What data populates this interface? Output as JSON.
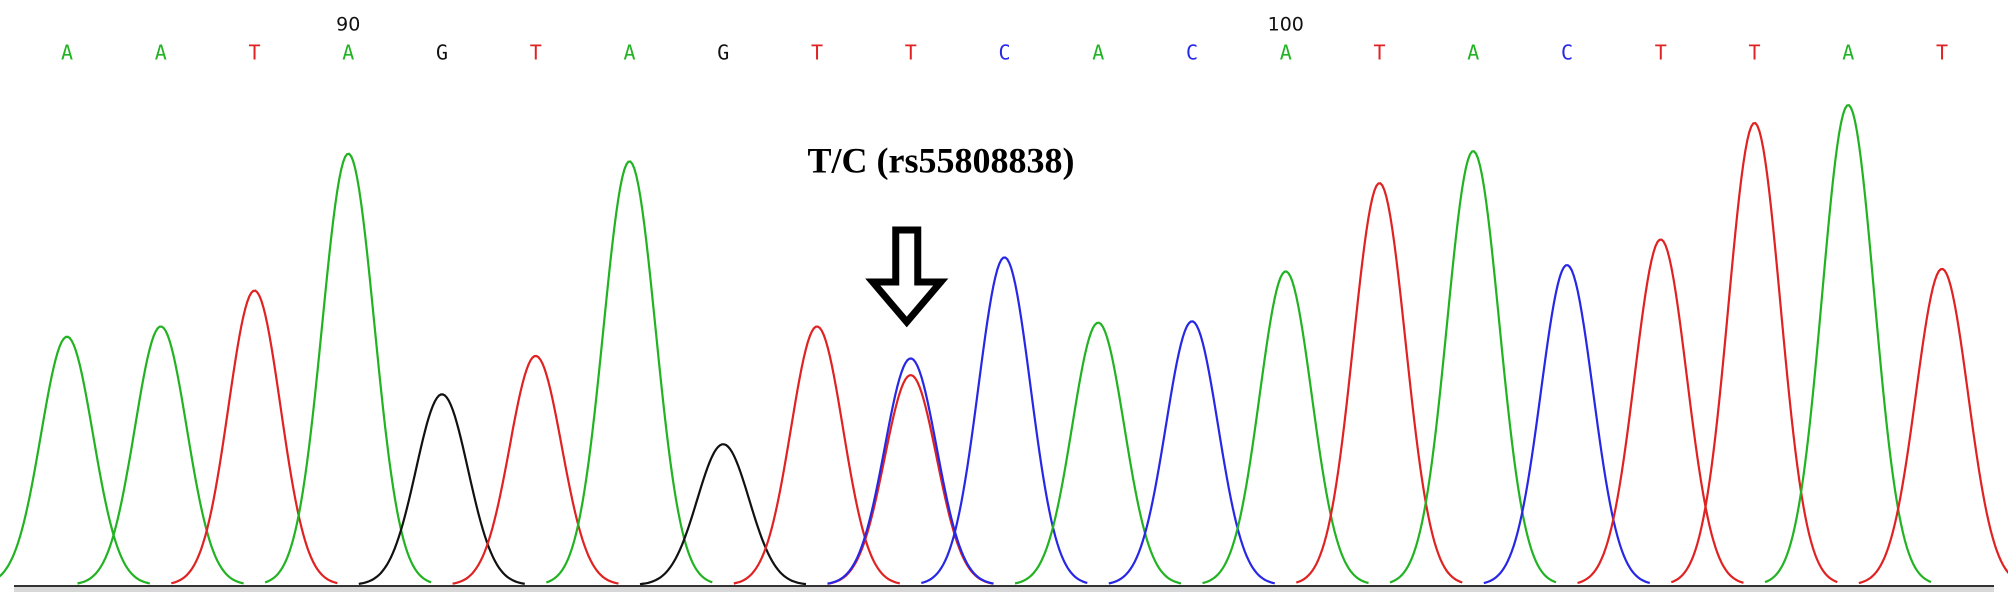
{
  "annotation": "T/C (rs55808838)",
  "base_colors": {
    "A": "#22b322",
    "C": "#2727e6",
    "G": "#111111",
    "T": "#e02222"
  },
  "bases": [
    {
      "base": "A",
      "peak_height": 194
    },
    {
      "base": "A",
      "peak_height": 202
    },
    {
      "base": "T",
      "peak_height": 230
    },
    {
      "base": "A",
      "position": "90",
      "peak_height": 337
    },
    {
      "base": "G",
      "peak_height": 149
    },
    {
      "base": "T",
      "peak_height": 179
    },
    {
      "base": "A",
      "peak_height": 331
    },
    {
      "base": "G",
      "peak_height": 110
    },
    {
      "base": "T",
      "peak_height": 202
    },
    {
      "base": "T",
      "peak_height": 164,
      "secondary_peak": {
        "base": "C",
        "peak_height": 177
      }
    },
    {
      "base": "C",
      "peak_height": 256
    },
    {
      "base": "A",
      "peak_height": 205
    },
    {
      "base": "C",
      "peak_height": 206
    },
    {
      "base": "A",
      "position": "100",
      "peak_height": 245
    },
    {
      "base": "T",
      "peak_height": 314
    },
    {
      "base": "A",
      "peak_height": 339
    },
    {
      "base": "C",
      "peak_height": 250
    },
    {
      "base": "T",
      "peak_height": 270
    },
    {
      "base": "T",
      "peak_height": 361
    },
    {
      "base": "A",
      "peak_height": 375
    },
    {
      "base": "T",
      "peak_height": 247
    }
  ]
}
